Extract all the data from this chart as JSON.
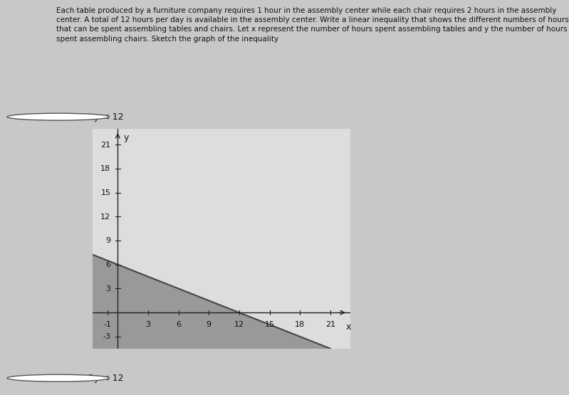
{
  "title_text": "Each table produced by a furniture company requires 1 hour in the assembly center while each chair requires 2 hours in the assembly center. A total of 12 hours per day is available in the assembly center. Write a linear inequality that shows the different numbers of hours that can be spent assembling tables and chairs. Let x represent the number of hours spent assembling tables and y the number of hours spent assembling chairs. Sketch the graph of the inequality",
  "option1": "2x + y < 12",
  "option2": "x + 2y < 12",
  "option1_selected": false,
  "option2_selected": false,
  "bg_color": "#c8c8c8",
  "shade_color": "#999999",
  "line_color": "#444444",
  "axis_color": "#222222",
  "text_color": "#111111",
  "x_ticks": [
    -1,
    3,
    6,
    9,
    12,
    15,
    18,
    21
  ],
  "y_ticks": [
    -3,
    3,
    6,
    9,
    12,
    15,
    18,
    21
  ],
  "xlim": [
    -2.5,
    23
  ],
  "ylim": [
    -4.5,
    23
  ],
  "graph_bg": "#dddddd",
  "font_size_title": 7.5,
  "font_size_option": 9,
  "font_size_tick": 8
}
